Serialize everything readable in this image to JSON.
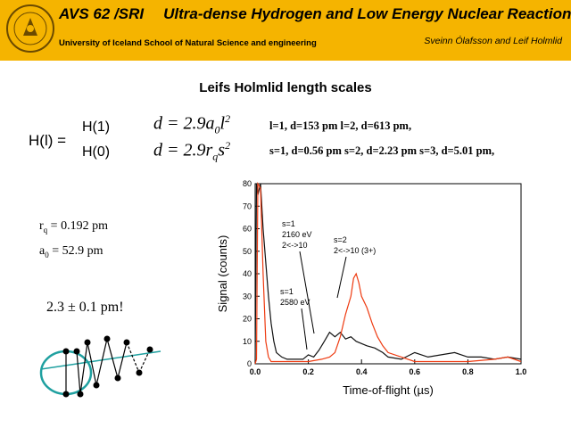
{
  "header": {
    "course_code": "AVS 62 /SRI",
    "title": "Ultra-dense Hydrogen and Low Energy Nuclear Reactions",
    "institution": "University of Iceland School of Natural Science and engineering",
    "authors": "Sveinn Ólafsson and Leif Holmlid",
    "logo_icon": "university-seal-icon"
  },
  "slide": {
    "title": "Leifs Holmlid length scales",
    "h_label": "H(l) =",
    "h1_label": "H(1)",
    "h0_label": "H(0)",
    "h1_results": "l=1, d=153 pm   l=2, d=613 pm,",
    "h0_results": "s=1, d=0.56 pm   s=2, d=2.23 pm  s=3, d=5.01 pm,",
    "a0_value": "= 52.9  pm",
    "rq_value": "= 0.192 pm",
    "pm_value": "2.3 ± 0.1 pm!"
  },
  "chart_data": {
    "type": "line",
    "xlabel": "Time-of-flight (µs)",
    "ylabel": "Signal (counts)",
    "xlim": [
      0.0,
      1.0
    ],
    "ylim": [
      0,
      80
    ],
    "xticks": [
      "0.0",
      "0.2",
      "0.4",
      "0.6",
      "0.8",
      "1.0"
    ],
    "yticks": [
      "0",
      "10",
      "20",
      "30",
      "40",
      "50",
      "60",
      "70",
      "80"
    ],
    "grid": false,
    "colors": {
      "black_series": "#111111",
      "red_series": "#ee3a10"
    },
    "series": [
      {
        "x": [
          0.0,
          0.005,
          0.01,
          0.02,
          0.03,
          0.04,
          0.05,
          0.06,
          0.07,
          0.08,
          0.1,
          0.12,
          0.15,
          0.18,
          0.2,
          0.22,
          0.24,
          0.26,
          0.28,
          0.3,
          0.32,
          0.34,
          0.36,
          0.38,
          0.4,
          0.42,
          0.45,
          0.48,
          0.5,
          0.55,
          0.6,
          0.65,
          0.7,
          0.75,
          0.8,
          0.85,
          0.9,
          0.95,
          1.0
        ],
        "y": [
          0,
          80,
          75,
          80,
          60,
          45,
          30,
          18,
          10,
          5,
          3,
          2,
          2,
          2,
          4,
          3,
          6,
          10,
          14,
          12,
          14,
          11,
          12,
          10,
          9,
          8,
          7,
          5,
          3,
          2,
          5,
          3,
          4,
          5,
          3,
          3,
          2,
          3,
          2
        ]
      },
      {
        "x": [
          0.0,
          0.005,
          0.01,
          0.02,
          0.03,
          0.04,
          0.05,
          0.06,
          0.08,
          0.1,
          0.15,
          0.2,
          0.25,
          0.28,
          0.3,
          0.32,
          0.34,
          0.36,
          0.37,
          0.38,
          0.39,
          0.4,
          0.42,
          0.44,
          0.46,
          0.48,
          0.5,
          0.55,
          0.6,
          0.7,
          0.8,
          0.9,
          0.95,
          1.0
        ],
        "y": [
          0,
          2,
          80,
          78,
          40,
          10,
          3,
          1,
          1,
          1,
          1,
          1,
          2,
          3,
          5,
          12,
          22,
          30,
          38,
          40,
          36,
          30,
          25,
          18,
          12,
          8,
          5,
          3,
          1,
          1,
          1,
          2,
          3,
          1
        ]
      }
    ],
    "annotations": [
      {
        "label_main": "s=1",
        "label_energy": "2160 eV",
        "label_trans": "2<->10"
      },
      {
        "label_main": "s=2",
        "label_trans": "2<->10 (3+)"
      },
      {
        "label_main": "s=1",
        "label_energy": "2580 eV"
      }
    ]
  }
}
